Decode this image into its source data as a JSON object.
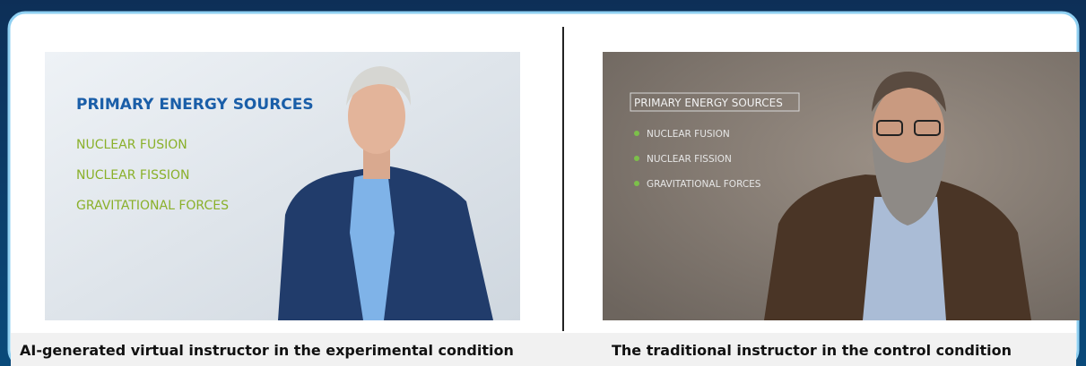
{
  "left": {
    "slide_title": "PRIMARY ENERGY SOURCES",
    "items": [
      "NUCLEAR FUSION",
      "NUCLEAR FISSION",
      "GRAVITATIONAL FORCES"
    ],
    "caption": "AI-generated virtual instructor in the experimental condition"
  },
  "right": {
    "slide_title": "PRIMARY ENERGY SOURCES",
    "items": [
      "NUCLEAR FUSION",
      "NUCLEAR FISSION",
      "GRAVITATIONAL FORCES"
    ],
    "caption": "The traditional instructor in the control condition"
  }
}
